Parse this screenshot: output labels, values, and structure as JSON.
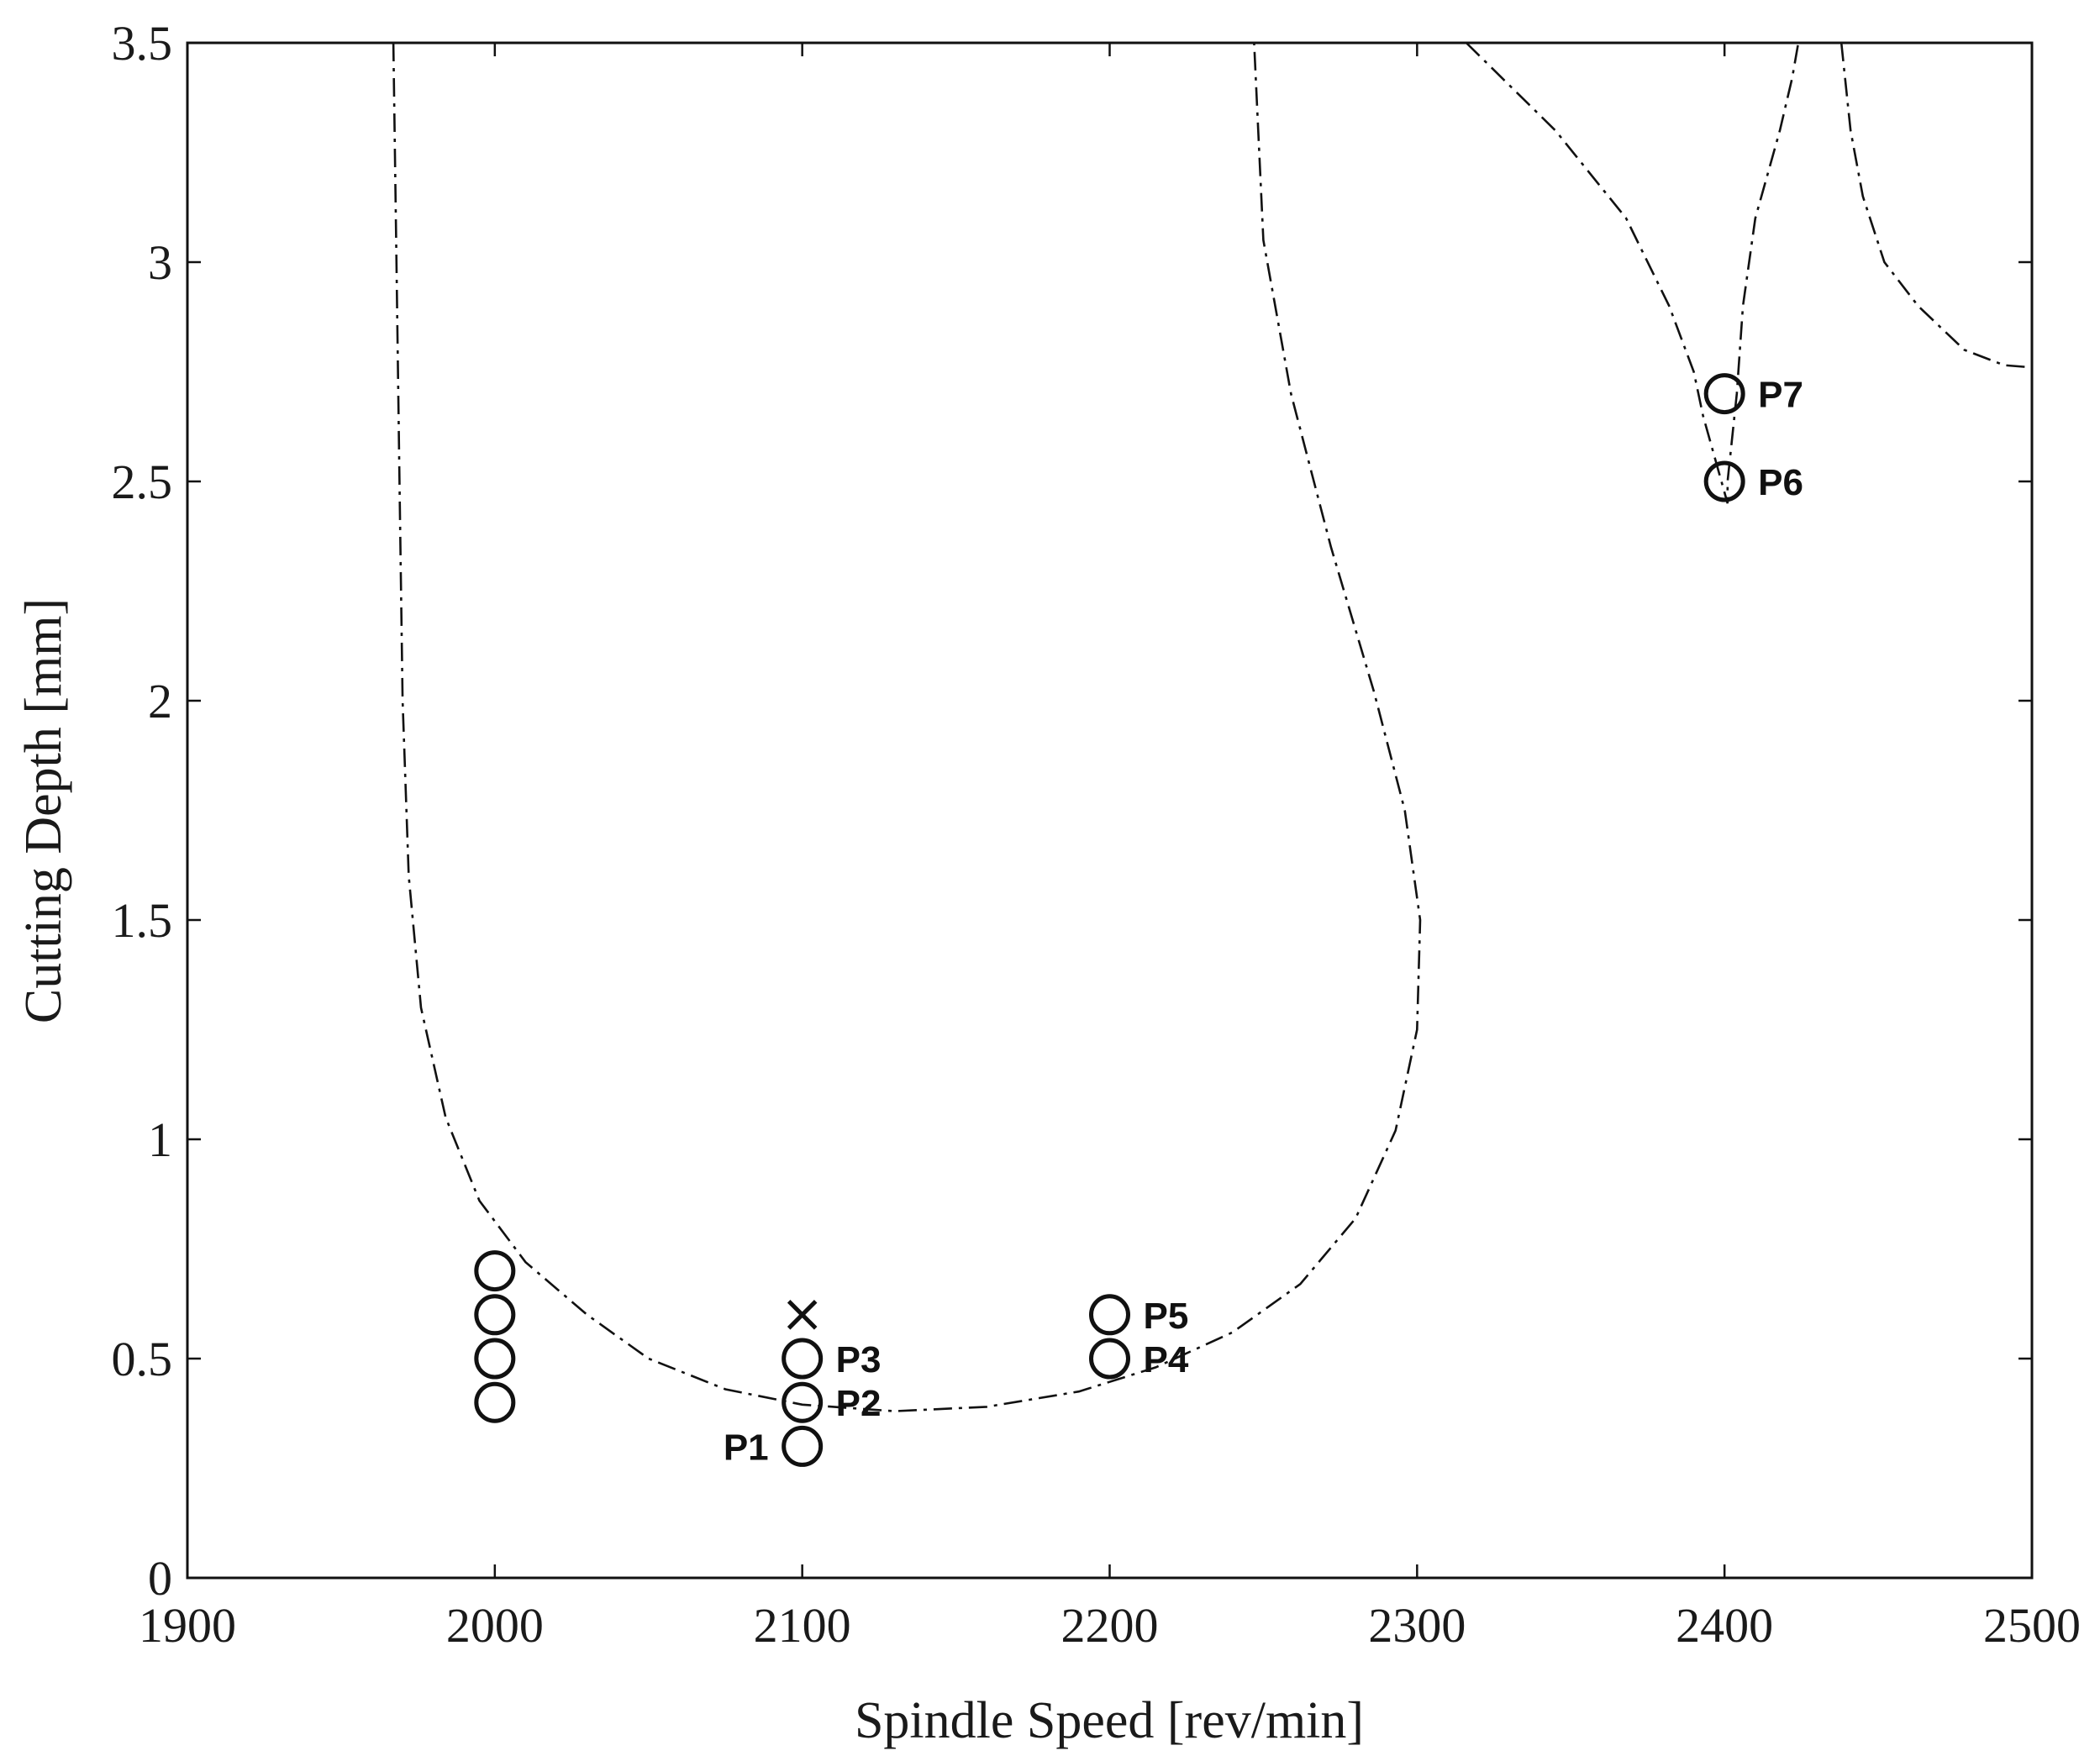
{
  "chart_data": {
    "type": "scatter",
    "title": "",
    "xlabel": "Spindle Speed [rev/min]",
    "ylabel": "Cutting Depth [mm]",
    "xlim": [
      1900,
      2500
    ],
    "ylim": [
      0,
      3.5
    ],
    "xticks": [
      1900,
      2000,
      2100,
      2200,
      2300,
      2400,
      2500
    ],
    "yticks": [
      0,
      0.5,
      1,
      1.5,
      2,
      2.5,
      3,
      3.5
    ],
    "xtick_labels": [
      "1900",
      "2000",
      "2100",
      "2200",
      "2300",
      "2400",
      "2500"
    ],
    "ytick_labels": [
      "0",
      "0.5",
      "1",
      "1.5",
      "2",
      "2.5",
      "3",
      "3.5"
    ],
    "grid": false,
    "legend": "none",
    "series": [
      {
        "marker": "circle",
        "points": [
          {
            "x": 2000,
            "y": 0.4,
            "label": ""
          },
          {
            "x": 2000,
            "y": 0.5,
            "label": ""
          },
          {
            "x": 2000,
            "y": 0.6,
            "label": ""
          },
          {
            "x": 2000,
            "y": 0.7,
            "label": ""
          },
          {
            "x": 2100,
            "y": 0.3,
            "label": "P1",
            "label_side": "left"
          },
          {
            "x": 2100,
            "y": 0.4,
            "label": "P2",
            "label_side": "right"
          },
          {
            "x": 2100,
            "y": 0.5,
            "label": "P3",
            "label_side": "right"
          },
          {
            "x": 2200,
            "y": 0.5,
            "label": "P4",
            "label_side": "right"
          },
          {
            "x": 2200,
            "y": 0.6,
            "label": "P5",
            "label_side": "right"
          },
          {
            "x": 2400,
            "y": 2.5,
            "label": "P6",
            "label_side": "right"
          },
          {
            "x": 2400,
            "y": 2.7,
            "label": "P7",
            "label_side": "right"
          }
        ]
      },
      {
        "marker": "x",
        "points": [
          {
            "x": 2100,
            "y": 0.6,
            "label": ""
          }
        ]
      }
    ],
    "stability_boundary": [
      [
        [
          1967,
          3.5
        ],
        [
          1968,
          3.0
        ],
        [
          1969,
          2.5
        ],
        [
          1970,
          2.0
        ],
        [
          1972,
          1.6
        ],
        [
          1976,
          1.3
        ],
        [
          1984,
          1.05
        ],
        [
          1995,
          0.86
        ],
        [
          2010,
          0.72
        ],
        [
          2030,
          0.6
        ],
        [
          2050,
          0.5
        ],
        [
          2075,
          0.43
        ],
        [
          2100,
          0.395
        ],
        [
          2130,
          0.38
        ],
        [
          2160,
          0.39
        ],
        [
          2190,
          0.425
        ],
        [
          2215,
          0.48
        ],
        [
          2240,
          0.56
        ],
        [
          2262,
          0.67
        ],
        [
          2280,
          0.82
        ],
        [
          2293,
          1.02
        ],
        [
          2300,
          1.25
        ],
        [
          2301,
          1.5
        ],
        [
          2296,
          1.75
        ],
        [
          2286,
          2.02
        ],
        [
          2272,
          2.35
        ],
        [
          2259,
          2.7
        ],
        [
          2250,
          3.05
        ],
        [
          2247,
          3.5
        ]
      ],
      [
        [
          2316,
          3.5
        ],
        [
          2345,
          3.3
        ],
        [
          2368,
          3.1
        ],
        [
          2382,
          2.9
        ],
        [
          2390,
          2.75
        ],
        [
          2393,
          2.65
        ],
        [
          2397,
          2.55
        ],
        [
          2399,
          2.5
        ],
        [
          2401,
          2.45
        ],
        [
          2401,
          2.5
        ],
        [
          2404,
          2.7
        ],
        [
          2406,
          2.9
        ],
        [
          2410,
          3.1
        ],
        [
          2414,
          3.2
        ],
        [
          2418,
          3.3
        ],
        [
          2422,
          3.42
        ],
        [
          2424,
          3.5
        ]
      ],
      [
        [
          2438,
          3.5
        ],
        [
          2441,
          3.3
        ],
        [
          2445,
          3.15
        ],
        [
          2452,
          3.0
        ],
        [
          2463,
          2.9
        ],
        [
          2478,
          2.8
        ],
        [
          2491,
          2.765
        ],
        [
          2500,
          2.76
        ]
      ]
    ]
  }
}
